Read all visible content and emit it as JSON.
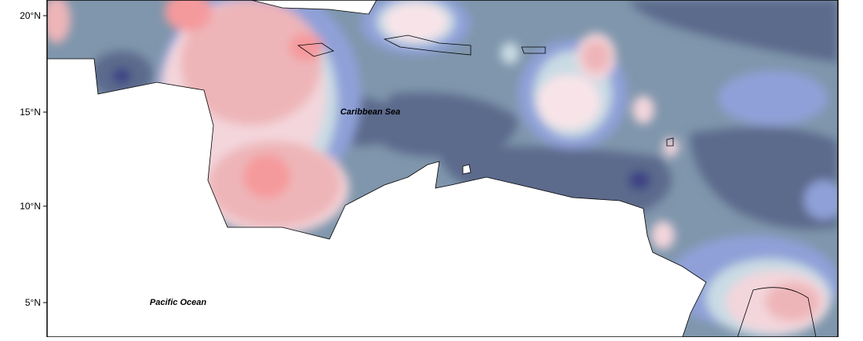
{
  "map": {
    "y_axis_labels": [
      "20°N",
      "15°N",
      "10°N",
      "5°N"
    ],
    "labels": {
      "sea": "Caribbean Sea",
      "ocean": "Pacific Ocean"
    }
  }
}
